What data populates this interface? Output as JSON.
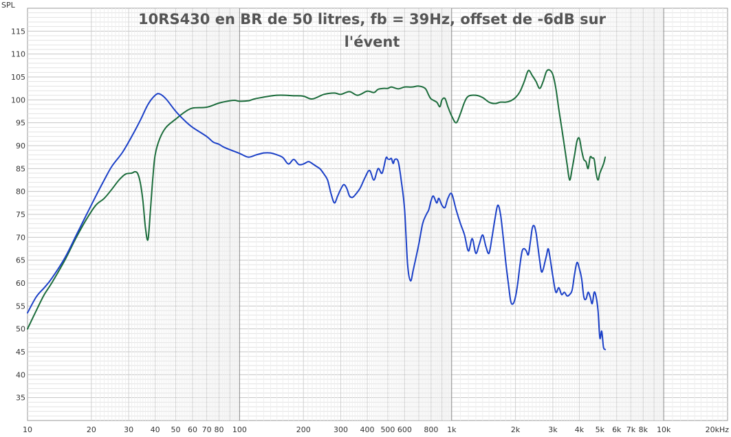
{
  "chart_data": {
    "type": "line",
    "title_lines": [
      "10RS430 en BR de 50 litres, fb = 39Hz, offset de -6dB sur",
      "l'évent"
    ],
    "ylabel": "SPL",
    "xscale": "log",
    "xlim": [
      10,
      20000
    ],
    "ylim": [
      30,
      120
    ],
    "grid": true,
    "x_tick_labels": [
      {
        "v": 10,
        "t": "10"
      },
      {
        "v": 20,
        "t": "20"
      },
      {
        "v": 30,
        "t": "30"
      },
      {
        "v": 40,
        "t": "40"
      },
      {
        "v": 50,
        "t": "50"
      },
      {
        "v": 60,
        "t": "60"
      },
      {
        "v": 70,
        "t": "70"
      },
      {
        "v": 80,
        "t": "80"
      },
      {
        "v": 100,
        "t": "100"
      },
      {
        "v": 200,
        "t": "200"
      },
      {
        "v": 300,
        "t": "300"
      },
      {
        "v": 400,
        "t": "400"
      },
      {
        "v": 500,
        "t": "500"
      },
      {
        "v": 600,
        "t": "600"
      },
      {
        "v": 800,
        "t": "800"
      },
      {
        "v": 1000,
        "t": "1k"
      },
      {
        "v": 2000,
        "t": "2k"
      },
      {
        "v": 3000,
        "t": "3k"
      },
      {
        "v": 4000,
        "t": "4k"
      },
      {
        "v": 5000,
        "t": "5k"
      },
      {
        "v": 6000,
        "t": "6k"
      },
      {
        "v": 7000,
        "t": "7k"
      },
      {
        "v": 8000,
        "t": "8k"
      },
      {
        "v": 10000,
        "t": "10k"
      },
      {
        "v": 20000,
        "t": "20kHz"
      }
    ],
    "y_tick_labels": [
      "35",
      "40",
      "45",
      "50",
      "55",
      "60",
      "65",
      "70",
      "75",
      "80",
      "85",
      "90",
      "95",
      "100",
      "105",
      "110",
      "115"
    ],
    "series": [
      {
        "color": "#1a6b3a",
        "points": [
          [
            10,
            50
          ],
          [
            11,
            54
          ],
          [
            12,
            57.5
          ],
          [
            13,
            60
          ],
          [
            15,
            65
          ],
          [
            17,
            70
          ],
          [
            19,
            74
          ],
          [
            21,
            77
          ],
          [
            23,
            78.5
          ],
          [
            25,
            80.5
          ],
          [
            27,
            82.5
          ],
          [
            29,
            83.8
          ],
          [
            31,
            84
          ],
          [
            32,
            84.3
          ],
          [
            33,
            84
          ],
          [
            34,
            82
          ],
          [
            35,
            78
          ],
          [
            36,
            72
          ],
          [
            37,
            69.5
          ],
          [
            38,
            76
          ],
          [
            39,
            83
          ],
          [
            40,
            88
          ],
          [
            42,
            91.5
          ],
          [
            45,
            94
          ],
          [
            50,
            95.8
          ],
          [
            55,
            97.3
          ],
          [
            60,
            98.2
          ],
          [
            70,
            98.4
          ],
          [
            80,
            99.3
          ],
          [
            90,
            99.8
          ],
          [
            95,
            99.9
          ],
          [
            100,
            99.7
          ],
          [
            110,
            99.8
          ],
          [
            120,
            100.3
          ],
          [
            150,
            101
          ],
          [
            180,
            100.9
          ],
          [
            200,
            100.8
          ],
          [
            220,
            100.2
          ],
          [
            250,
            101.2
          ],
          [
            280,
            101.5
          ],
          [
            300,
            101.2
          ],
          [
            330,
            101.8
          ],
          [
            360,
            101
          ],
          [
            400,
            101.9
          ],
          [
            430,
            101.6
          ],
          [
            450,
            102.3
          ],
          [
            480,
            102.5
          ],
          [
            500,
            102.5
          ],
          [
            520,
            102.8
          ],
          [
            560,
            102.4
          ],
          [
            600,
            102.8
          ],
          [
            650,
            102.8
          ],
          [
            700,
            103
          ],
          [
            750,
            102.5
          ],
          [
            780,
            101
          ],
          [
            800,
            100.2
          ],
          [
            850,
            99.5
          ],
          [
            880,
            98.5
          ],
          [
            900,
            100
          ],
          [
            930,
            100.3
          ],
          [
            960,
            98.5
          ],
          [
            1000,
            96.5
          ],
          [
            1050,
            95
          ],
          [
            1100,
            97
          ],
          [
            1150,
            99.5
          ],
          [
            1200,
            100.8
          ],
          [
            1300,
            101
          ],
          [
            1400,
            100.5
          ],
          [
            1500,
            99.5
          ],
          [
            1600,
            99.2
          ],
          [
            1700,
            99.5
          ],
          [
            1800,
            99.5
          ],
          [
            1900,
            99.8
          ],
          [
            2000,
            100.5
          ],
          [
            2100,
            101.8
          ],
          [
            2200,
            104
          ],
          [
            2300,
            106.4
          ],
          [
            2400,
            105.3
          ],
          [
            2500,
            104
          ],
          [
            2600,
            102.5
          ],
          [
            2700,
            104
          ],
          [
            2800,
            106.2
          ],
          [
            2900,
            106.5
          ],
          [
            3000,
            105.5
          ],
          [
            3100,
            102.5
          ],
          [
            3200,
            98
          ],
          [
            3300,
            94
          ],
          [
            3400,
            90
          ],
          [
            3500,
            86
          ],
          [
            3600,
            82.5
          ],
          [
            3700,
            85
          ],
          [
            3800,
            88
          ],
          [
            3900,
            91
          ],
          [
            4000,
            91.6
          ],
          [
            4100,
            89
          ],
          [
            4200,
            87
          ],
          [
            4300,
            86.5
          ],
          [
            4400,
            85
          ],
          [
            4500,
            87.5
          ],
          [
            4600,
            87.3
          ],
          [
            4700,
            87
          ],
          [
            4800,
            84
          ],
          [
            4900,
            82.5
          ],
          [
            5000,
            84
          ],
          [
            5200,
            86
          ],
          [
            5300,
            87.5
          ]
        ]
      },
      {
        "color": "#1a3fc7",
        "points": [
          [
            10,
            53.5
          ],
          [
            11,
            57
          ],
          [
            12,
            59
          ],
          [
            13,
            61
          ],
          [
            15,
            65.5
          ],
          [
            17,
            70.5
          ],
          [
            19,
            75
          ],
          [
            21,
            79
          ],
          [
            23,
            82.5
          ],
          [
            25,
            85.5
          ],
          [
            28,
            88.5
          ],
          [
            31,
            92
          ],
          [
            34,
            95.5
          ],
          [
            37,
            99
          ],
          [
            40,
            101
          ],
          [
            42,
            101.3
          ],
          [
            45,
            100.2
          ],
          [
            50,
            97.5
          ],
          [
            55,
            95.5
          ],
          [
            60,
            94
          ],
          [
            70,
            92
          ],
          [
            75,
            90.8
          ],
          [
            80,
            90.3
          ],
          [
            85,
            89.6
          ],
          [
            100,
            88.3
          ],
          [
            110,
            87.5
          ],
          [
            120,
            88
          ],
          [
            130,
            88.4
          ],
          [
            140,
            88.4
          ],
          [
            150,
            88
          ],
          [
            160,
            87.4
          ],
          [
            170,
            86
          ],
          [
            180,
            87
          ],
          [
            190,
            85.9
          ],
          [
            200,
            86
          ],
          [
            210,
            86.5
          ],
          [
            215,
            86.4
          ],
          [
            220,
            86.1
          ],
          [
            230,
            85.5
          ],
          [
            240,
            84.9
          ],
          [
            250,
            83.8
          ],
          [
            260,
            82.5
          ],
          [
            270,
            79.5
          ],
          [
            280,
            77.5
          ],
          [
            290,
            79
          ],
          [
            300,
            80.5
          ],
          [
            310,
            81.5
          ],
          [
            320,
            80.7
          ],
          [
            330,
            79
          ],
          [
            340,
            78.7
          ],
          [
            350,
            79.2
          ],
          [
            370,
            80.7
          ],
          [
            390,
            83
          ],
          [
            410,
            84.6
          ],
          [
            430,
            82.5
          ],
          [
            450,
            85
          ],
          [
            470,
            84
          ],
          [
            490,
            87.3
          ],
          [
            500,
            87.1
          ],
          [
            510,
            87
          ],
          [
            520,
            87.2
          ],
          [
            530,
            86.1
          ],
          [
            540,
            87
          ],
          [
            560,
            86.5
          ],
          [
            580,
            82
          ],
          [
            600,
            76
          ],
          [
            620,
            64
          ],
          [
            640,
            60.5
          ],
          [
            660,
            63
          ],
          [
            700,
            68.5
          ],
          [
            730,
            73
          ],
          [
            760,
            75
          ],
          [
            780,
            76
          ],
          [
            800,
            78
          ],
          [
            820,
            79
          ],
          [
            850,
            77.5
          ],
          [
            870,
            78.5
          ],
          [
            900,
            77
          ],
          [
            930,
            76.5
          ],
          [
            960,
            78.5
          ],
          [
            1000,
            79.5
          ],
          [
            1050,
            76
          ],
          [
            1100,
            73
          ],
          [
            1150,
            70.5
          ],
          [
            1200,
            67
          ],
          [
            1250,
            69.7
          ],
          [
            1300,
            66.5
          ],
          [
            1350,
            68.5
          ],
          [
            1400,
            70.5
          ],
          [
            1450,
            68
          ],
          [
            1500,
            66.5
          ],
          [
            1550,
            70
          ],
          [
            1600,
            74
          ],
          [
            1650,
            77
          ],
          [
            1700,
            75
          ],
          [
            1750,
            70
          ],
          [
            1800,
            64.5
          ],
          [
            1850,
            60
          ],
          [
            1900,
            56
          ],
          [
            1950,
            55.5
          ],
          [
            2000,
            57
          ],
          [
            2050,
            60
          ],
          [
            2100,
            64
          ],
          [
            2150,
            67
          ],
          [
            2200,
            67.5
          ],
          [
            2250,
            67
          ],
          [
            2300,
            66.2
          ],
          [
            2350,
            69
          ],
          [
            2400,
            72
          ],
          [
            2450,
            72.5
          ],
          [
            2500,
            71
          ],
          [
            2550,
            68
          ],
          [
            2600,
            65
          ],
          [
            2650,
            62.5
          ],
          [
            2700,
            63
          ],
          [
            2750,
            64.5
          ],
          [
            2800,
            66
          ],
          [
            2850,
            67.5
          ],
          [
            2900,
            66
          ],
          [
            3000,
            61.5
          ],
          [
            3100,
            58
          ],
          [
            3200,
            59
          ],
          [
            3300,
            57.5
          ],
          [
            3400,
            58
          ],
          [
            3500,
            57.2
          ],
          [
            3600,
            57.5
          ],
          [
            3700,
            58.5
          ],
          [
            3800,
            62
          ],
          [
            3900,
            64.5
          ],
          [
            4000,
            63.2
          ],
          [
            4100,
            61
          ],
          [
            4200,
            57
          ],
          [
            4300,
            56.5
          ],
          [
            4400,
            58
          ],
          [
            4500,
            57
          ],
          [
            4600,
            55.5
          ],
          [
            4700,
            58
          ],
          [
            4800,
            57
          ],
          [
            4900,
            54
          ],
          [
            5000,
            48
          ],
          [
            5100,
            49.5
          ],
          [
            5200,
            46
          ],
          [
            5300,
            45.5
          ]
        ]
      }
    ]
  }
}
